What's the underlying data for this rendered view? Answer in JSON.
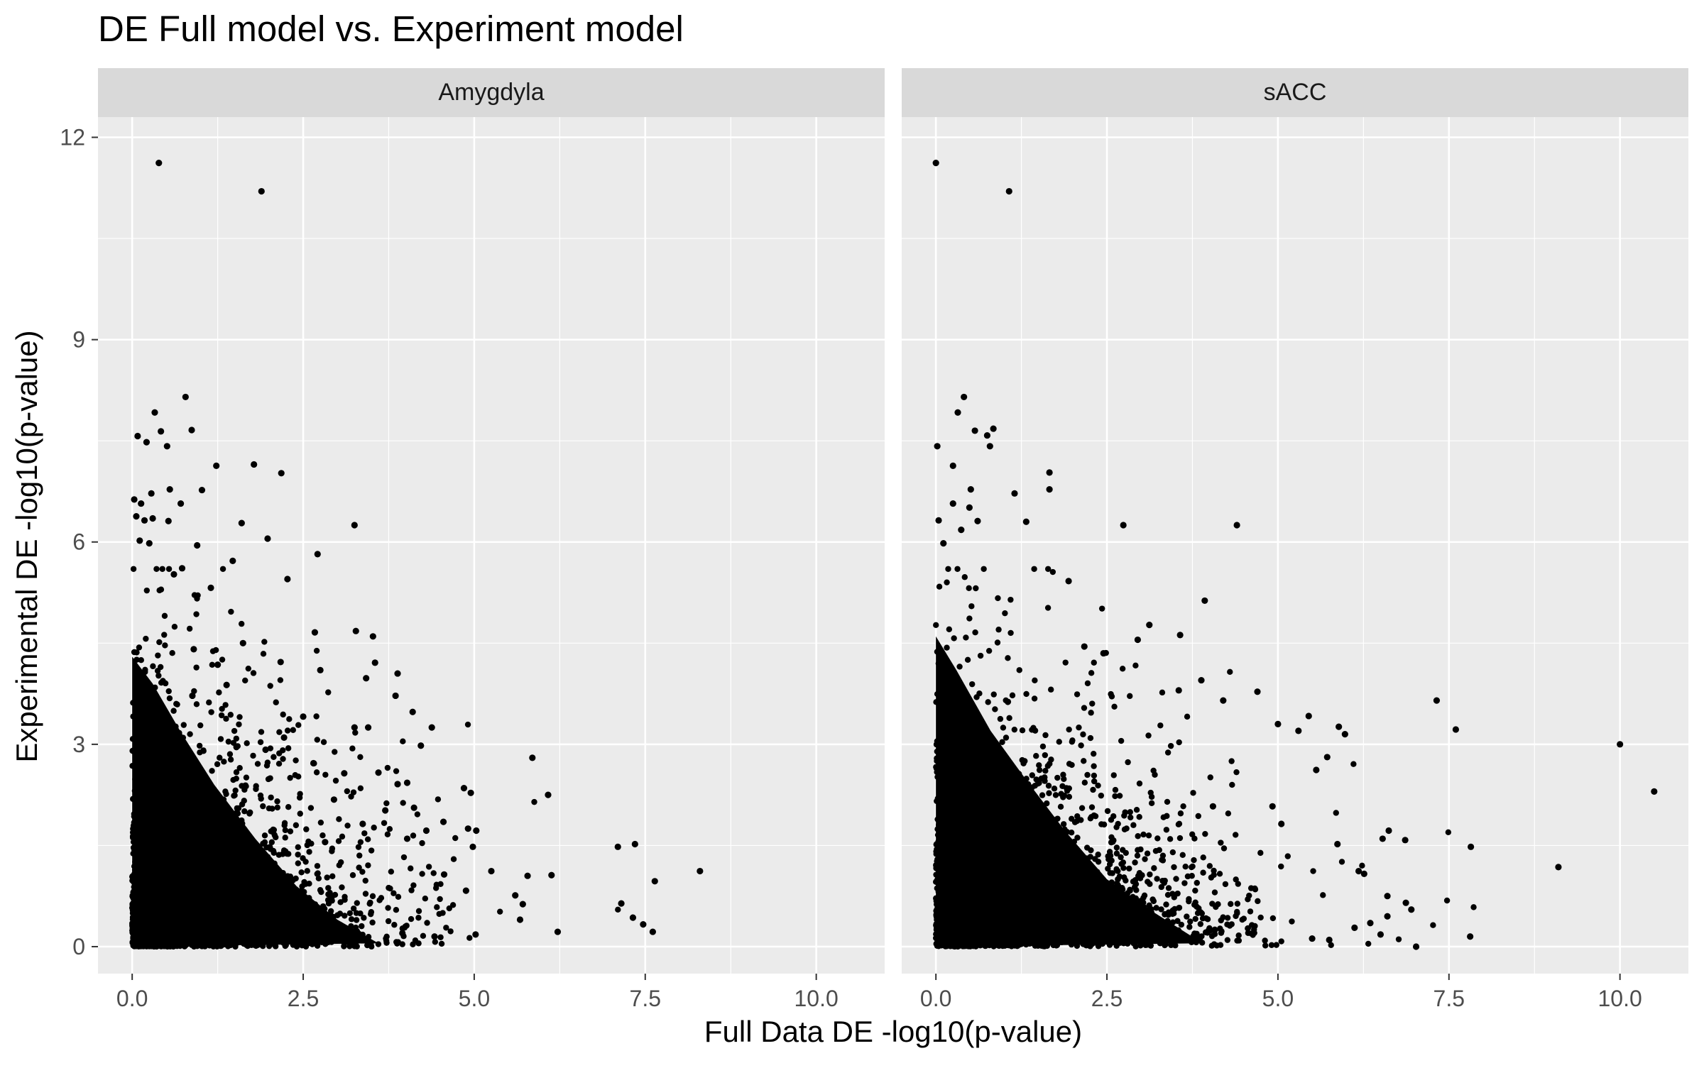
{
  "chart_data": {
    "type": "scatter",
    "title": "DE Full model vs. Experiment model",
    "xlabel": "Full Data DE -log10(p-value)",
    "ylabel": "Experimental DE -log10(p-value)",
    "xlim": [
      -0.5,
      11.0
    ],
    "ylim": [
      -0.4,
      12.3
    ],
    "x_ticks": [
      0.0,
      2.5,
      5.0,
      7.5,
      10.0
    ],
    "x_tick_labels": [
      "0.0",
      "2.5",
      "5.0",
      "7.5",
      "10.0"
    ],
    "y_ticks": [
      0,
      3,
      6,
      9,
      12
    ],
    "y_tick_labels": [
      "0",
      "3",
      "6",
      "9",
      "12"
    ],
    "grid": true,
    "facets": [
      {
        "label": "Amygdyla",
        "points": [
          [
            0.39,
            11.62
          ],
          [
            1.89,
            11.2
          ],
          [
            0.78,
            8.15
          ],
          [
            0.33,
            7.92
          ],
          [
            0.87,
            7.66
          ],
          [
            0.42,
            7.64
          ],
          [
            0.08,
            7.57
          ],
          [
            0.21,
            7.48
          ],
          [
            0.51,
            7.42
          ],
          [
            1.78,
            7.15
          ],
          [
            1.23,
            7.13
          ],
          [
            2.18,
            7.02
          ],
          [
            1.02,
            6.77
          ],
          [
            0.55,
            6.78
          ],
          [
            0.03,
            6.63
          ],
          [
            0.13,
            6.57
          ],
          [
            0.28,
            6.72
          ],
          [
            0.71,
            6.57
          ],
          [
            0.06,
            6.38
          ],
          [
            0.18,
            6.32
          ],
          [
            0.53,
            6.31
          ],
          [
            1.6,
            6.28
          ],
          [
            3.25,
            6.25
          ],
          [
            0.3,
            6.35
          ],
          [
            1.98,
            6.05
          ],
          [
            0.11,
            6.02
          ],
          [
            0.25,
            5.98
          ],
          [
            0.95,
            5.95
          ],
          [
            2.71,
            5.82
          ],
          [
            1.47,
            5.72
          ],
          [
            0.73,
            5.61
          ],
          [
            2.27,
            5.45
          ],
          [
            0.61,
            5.52
          ],
          [
            1.15,
            5.32
          ],
          [
            3.27,
            4.68
          ],
          [
            2.67,
            4.66
          ],
          [
            3.52,
            4.6
          ],
          [
            1.62,
            4.5
          ],
          [
            0.9,
            4.41
          ],
          [
            2.17,
            4.22
          ],
          [
            3.88,
            4.05
          ],
          [
            3.55,
            4.21
          ],
          [
            1.25,
            4.18
          ],
          [
            2.75,
            4.1
          ],
          [
            3.42,
            3.98
          ],
          [
            1.38,
            3.88
          ],
          [
            3.85,
            3.72
          ],
          [
            0.88,
            3.72
          ],
          [
            4.1,
            3.48
          ],
          [
            2.5,
            3.41
          ],
          [
            3.45,
            3.25
          ],
          [
            3.25,
            3.25
          ],
          [
            4.38,
            3.25
          ],
          [
            2.22,
            3.1
          ],
          [
            4.22,
            2.98
          ],
          [
            1.95,
            2.92
          ],
          [
            5.85,
            2.8
          ],
          [
            2.65,
            2.72
          ],
          [
            3.1,
            2.57
          ],
          [
            3.6,
            2.58
          ],
          [
            4.02,
            2.43
          ],
          [
            6.08,
            2.25
          ],
          [
            3.88,
            2.41
          ],
          [
            4.85,
            2.35
          ],
          [
            4.95,
            2.28
          ],
          [
            2.95,
            2.18
          ],
          [
            4.12,
            2.06
          ],
          [
            3.7,
            2.02
          ],
          [
            4.55,
            1.85
          ],
          [
            4.91,
            1.75
          ],
          [
            4.3,
            1.72
          ],
          [
            5.03,
            1.72
          ],
          [
            3.37,
            1.82
          ],
          [
            4.02,
            1.6
          ],
          [
            2.82,
            1.55
          ],
          [
            4.98,
            1.48
          ],
          [
            7.1,
            1.48
          ],
          [
            7.35,
            1.52
          ],
          [
            5.25,
            1.12
          ],
          [
            8.3,
            1.12
          ],
          [
            6.13,
            1.06
          ],
          [
            5.78,
            1.05
          ],
          [
            7.64,
            0.97
          ],
          [
            4.56,
            1.07
          ],
          [
            4.88,
            0.83
          ],
          [
            5.6,
            0.76
          ],
          [
            7.15,
            0.64
          ],
          [
            5.71,
            0.63
          ],
          [
            7.32,
            0.43
          ],
          [
            5.67,
            0.4
          ],
          [
            7.47,
            0.33
          ],
          [
            6.22,
            0.22
          ],
          [
            7.61,
            0.22
          ],
          [
            5.02,
            0.18
          ],
          [
            4.42,
            0.15
          ],
          [
            3.95,
            0.2
          ]
        ]
      },
      {
        "label": "sACC",
        "points": [
          [
            0.0,
            11.62
          ],
          [
            1.07,
            11.2
          ],
          [
            0.41,
            8.15
          ],
          [
            0.32,
            7.92
          ],
          [
            0.84,
            7.68
          ],
          [
            0.57,
            7.65
          ],
          [
            0.75,
            7.58
          ],
          [
            0.02,
            7.42
          ],
          [
            0.79,
            7.42
          ],
          [
            0.25,
            7.13
          ],
          [
            1.66,
            7.03
          ],
          [
            0.51,
            6.78
          ],
          [
            1.15,
            6.72
          ],
          [
            1.66,
            6.78
          ],
          [
            0.25,
            6.57
          ],
          [
            0.49,
            6.51
          ],
          [
            0.04,
            6.32
          ],
          [
            0.61,
            6.31
          ],
          [
            1.32,
            6.3
          ],
          [
            2.74,
            6.25
          ],
          [
            4.4,
            6.25
          ],
          [
            0.37,
            6.18
          ],
          [
            0.11,
            5.98
          ],
          [
            3.93,
            5.13
          ],
          [
            1.94,
            5.42
          ],
          [
            3.12,
            4.77
          ],
          [
            2.95,
            4.55
          ],
          [
            3.57,
            4.62
          ],
          [
            2.17,
            4.45
          ],
          [
            2.45,
            4.35
          ],
          [
            3.88,
            3.95
          ],
          [
            3.55,
            3.8
          ],
          [
            4.7,
            3.78
          ],
          [
            4.2,
            3.65
          ],
          [
            7.32,
            3.65
          ],
          [
            5.45,
            3.42
          ],
          [
            5.89,
            3.26
          ],
          [
            5.98,
            3.15
          ],
          [
            7.6,
            3.22
          ],
          [
            5.3,
            3.2
          ],
          [
            5.0,
            3.3
          ],
          [
            10.0,
            3.0
          ],
          [
            5.56,
            2.62
          ],
          [
            5.72,
            2.81
          ],
          [
            10.5,
            2.3
          ],
          [
            4.92,
            2.08
          ],
          [
            4.05,
            2.08
          ],
          [
            5.05,
            1.82
          ],
          [
            6.62,
            1.72
          ],
          [
            6.53,
            1.6
          ],
          [
            6.86,
            1.58
          ],
          [
            5.87,
            1.52
          ],
          [
            7.82,
            1.48
          ],
          [
            9.1,
            1.18
          ],
          [
            6.18,
            1.12
          ],
          [
            6.26,
            1.08
          ],
          [
            6.6,
            0.75
          ],
          [
            6.87,
            0.65
          ],
          [
            6.95,
            0.55
          ],
          [
            6.6,
            0.45
          ],
          [
            6.35,
            0.35
          ],
          [
            6.12,
            0.28
          ],
          [
            6.5,
            0.18
          ],
          [
            7.02,
            0.0
          ],
          [
            7.81,
            0.15
          ],
          [
            5.75,
            0.1
          ],
          [
            5.5,
            0.12
          ]
        ]
      }
    ]
  }
}
